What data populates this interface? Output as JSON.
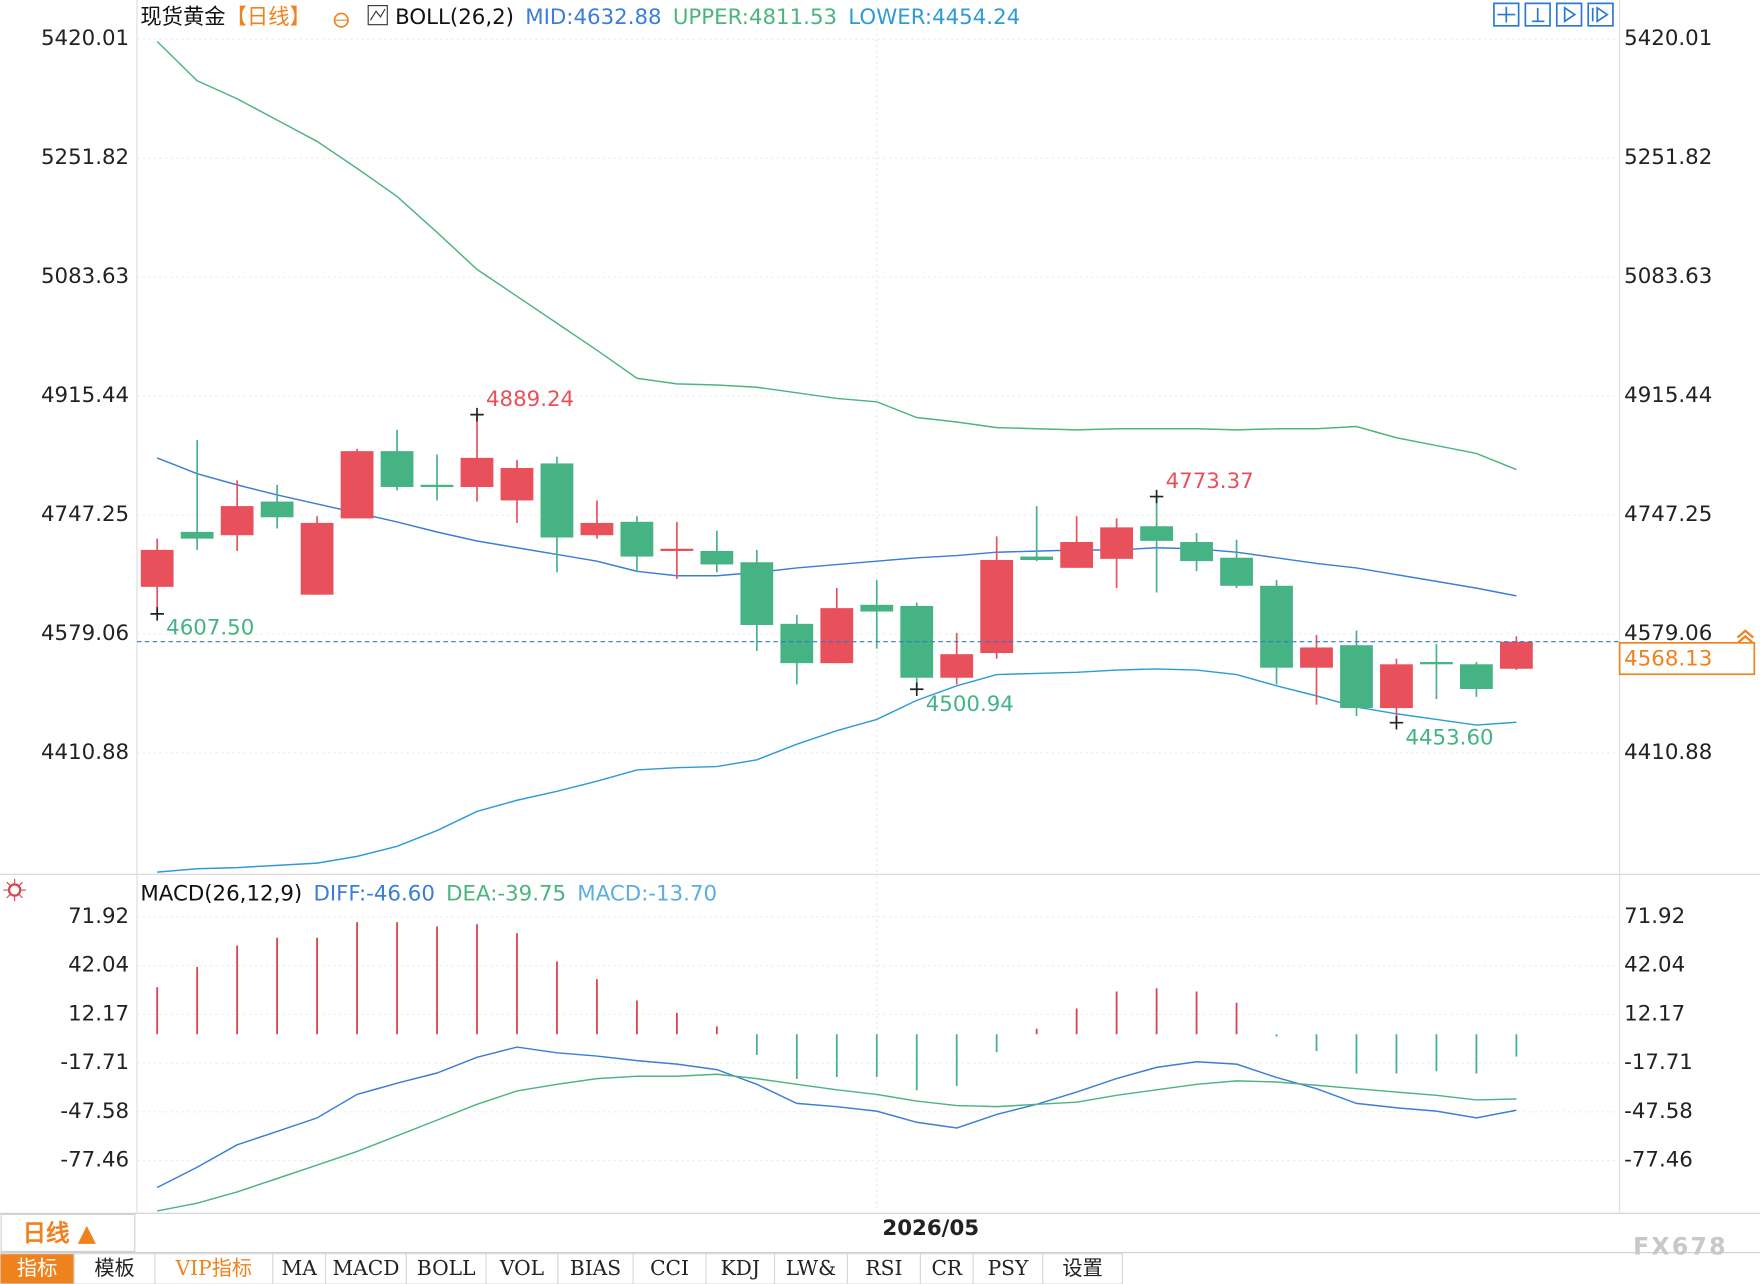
{
  "chart_data": [
    {
      "type": "candlestick",
      "title": "现货黄金",
      "subtitle": "【日线】",
      "indicator": "BOLL(26,2)",
      "categories": [
        null,
        null,
        null,
        null,
        null,
        null,
        null,
        null,
        null,
        null,
        null,
        null,
        null,
        null,
        null,
        null,
        null,
        null,
        "2026/05",
        null,
        null,
        null,
        null,
        null,
        null,
        null,
        null,
        null,
        null,
        null,
        null,
        null,
        null,
        null,
        null
      ],
      "open": [
        4645.7,
        4723.4,
        4718.7,
        4766.3,
        4634.6,
        4742.5,
        4837.6,
        4790.0,
        4786.9,
        4767.9,
        4820.2,
        4718.7,
        4737.7,
        4696.4,
        4696.4,
        4680.5,
        4593.4,
        4537.8,
        4620.3,
        4618.7,
        4517.2,
        4552.1,
        4688.5,
        4672.6,
        4685.3,
        4731.4,
        4709.1,
        4686.9,
        4647.2,
        4531.4,
        4563.2,
        4474.3,
        4539.4,
        4536.2,
        4529.9
      ],
      "high": [
        4713.9,
        4853.5,
        4796.4,
        4790.0,
        4745.6,
        4840.8,
        4867.8,
        4832.9,
        4889.24,
        4825.0,
        4829.7,
        4767.9,
        4745.6,
        4737.7,
        4725.0,
        4698.0,
        4606.1,
        4644.1,
        4655.2,
        4623.5,
        4580.7,
        4717.1,
        4759.9,
        4745.6,
        4742.5,
        4773.37,
        4721.8,
        4712.3,
        4655.2,
        4577.5,
        4583.9,
        4544.1,
        4564.8,
        4539.4,
        4575.9
      ],
      "low": [
        4607.5,
        4698.0,
        4696.4,
        4728.2,
        4634.6,
        4742.5,
        4782.1,
        4767.9,
        4766.3,
        4736.1,
        4666.3,
        4713.9,
        4666.3,
        4656.8,
        4666.3,
        4555.2,
        4507.7,
        4537.8,
        4558.4,
        4500.94,
        4507.7,
        4544.1,
        4682.1,
        4672.6,
        4644.1,
        4637.7,
        4667.9,
        4644.1,
        4507.7,
        4479.1,
        4463.2,
        4453.6,
        4487.0,
        4490.2,
        4528.3
      ],
      "close": [
        4698.0,
        4713.9,
        4759.9,
        4744.1,
        4736.1,
        4837.6,
        4786.9,
        4786.9,
        4828.1,
        4813.8,
        4715.5,
        4736.1,
        4688.5,
        4699.6,
        4677.4,
        4591.8,
        4537.8,
        4615.6,
        4610.8,
        4517.2,
        4550.5,
        4683.7,
        4683.7,
        4709.1,
        4729.8,
        4710.7,
        4682.1,
        4647.2,
        4531.4,
        4560.0,
        4474.3,
        4536.2,
        4536.2,
        4501.3,
        4568.13
      ],
      "high_labels": [
        null,
        null,
        null,
        null,
        null,
        null,
        null,
        null,
        "4889.24",
        null,
        null,
        null,
        null,
        null,
        null,
        null,
        null,
        null,
        null,
        null,
        null,
        null,
        null,
        null,
        null,
        "4773.37",
        null,
        null,
        null,
        null,
        null,
        null,
        null,
        null,
        null
      ],
      "low_labels": [
        "4607.50",
        null,
        null,
        null,
        null,
        null,
        null,
        null,
        null,
        null,
        null,
        null,
        null,
        null,
        null,
        null,
        null,
        null,
        null,
        "4500.94",
        null,
        null,
        null,
        null,
        null,
        null,
        null,
        null,
        null,
        null,
        null,
        "4453.60",
        null,
        null,
        null
      ],
      "up_color": "#e8505b",
      "down_color": "#45b384",
      "series": [
        {
          "name": "MID:4632.88",
          "color": "#3b7dd8",
          "values": [
            4828.0,
            4805.8,
            4789.9,
            4775.6,
            4762.9,
            4750.2,
            4737.5,
            4723.3,
            4710.6,
            4701.0,
            4691.5,
            4682.0,
            4667.7,
            4661.4,
            4661.4,
            4666.1,
            4672.5,
            4677.2,
            4682.0,
            4686.8,
            4689.9,
            4694.7,
            4696.3,
            4697.9,
            4697.9,
            4701.0,
            4699.5,
            4694.7,
            4686.8,
            4678.8,
            4672.5,
            4663.0,
            4653.4,
            4643.9,
            4632.88
          ]
        },
        {
          "name": "UPPER:4811.53",
          "color": "#4cb47f",
          "values": [
            5416.8,
            5361.2,
            5335.8,
            5305.7,
            5275.5,
            5237.4,
            5197.8,
            5147.0,
            5094.6,
            5056.5,
            5018.4,
            4980.4,
            4940.7,
            4932.7,
            4931.2,
            4928.0,
            4920.0,
            4912.1,
            4907.4,
            4885.1,
            4878.8,
            4870.9,
            4869.3,
            4867.7,
            4869.3,
            4869.3,
            4869.3,
            4867.7,
            4869.3,
            4869.3,
            4872.4,
            4856.6,
            4845.5,
            4834.4,
            4811.53
          ]
        },
        {
          "name": "LOWER:4454.24",
          "color": "#2e9bd6",
          "values": [
            4242.4,
            4247.2,
            4248.7,
            4251.9,
            4255.1,
            4264.6,
            4278.9,
            4301.1,
            4328.1,
            4344.0,
            4356.7,
            4370.9,
            4386.8,
            4390.0,
            4391.6,
            4401.1,
            4423.3,
            4442.4,
            4458.2,
            4485.2,
            4505.8,
            4521.7,
            4523.3,
            4524.9,
            4528.1,
            4529.6,
            4528.1,
            4521.7,
            4505.8,
            4491.6,
            4475.7,
            4466.2,
            4458.2,
            4450.3,
            4454.24
          ]
        }
      ],
      "last_price": 4568.13,
      "last_price_color": "#f0821e",
      "ylim": [
        4240.8,
        5475.5
      ],
      "yticks": [
        5420.01,
        5251.82,
        5083.63,
        4915.44,
        4747.25,
        4579.06,
        4410.88
      ],
      "grid": true
    },
    {
      "type": "macd",
      "title": "MACD(26,12,9)",
      "series": [
        {
          "name": "DIFF:-46.60",
          "color": "#3b7dd8",
          "type": "line",
          "values": [
            -94.0,
            -81.6,
            -67.8,
            -59.6,
            -51.3,
            -36.9,
            -30.0,
            -23.8,
            -14.1,
            -7.9,
            -11.4,
            -13.4,
            -16.2,
            -18.3,
            -21.7,
            -30.7,
            -42.4,
            -44.4,
            -47.2,
            -54.0,
            -57.5,
            -49.2,
            -43.0,
            -35.5,
            -27.2,
            -20.3,
            -16.9,
            -18.3,
            -26.5,
            -33.4,
            -42.4,
            -45.1,
            -47.2,
            -51.3,
            -46.6
          ]
        },
        {
          "name": "DEA:-39.75",
          "color": "#4cb47f",
          "type": "line",
          "values": [
            -108.4,
            -103.6,
            -96.7,
            -88.5,
            -80.2,
            -71.9,
            -62.3,
            -52.7,
            -43.0,
            -34.8,
            -30.7,
            -27.2,
            -25.8,
            -25.8,
            -24.5,
            -27.2,
            -30.7,
            -34.1,
            -36.9,
            -41.0,
            -43.7,
            -44.4,
            -43.0,
            -41.7,
            -37.5,
            -34.1,
            -30.7,
            -28.6,
            -29.3,
            -31.3,
            -33.4,
            -35.5,
            -37.5,
            -40.3,
            -39.75
          ]
        },
        {
          "name": "MACD:-13.70",
          "color": "#5aaee0",
          "type": "bar",
          "up_color": "#d9434e",
          "down_color": "#45b384",
          "values": [
            28.9,
            41.3,
            54.4,
            59.2,
            59.2,
            68.8,
            68.8,
            66.1,
            67.5,
            62.0,
            44.7,
            33.7,
            20.7,
            13.1,
            4.8,
            -12.7,
            -27.5,
            -26.2,
            -26.2,
            -34.4,
            -31.7,
            -11.0,
            3.4,
            15.8,
            26.2,
            28.2,
            26.2,
            19.3,
            -1.4,
            -10.3,
            -24.1,
            -24.1,
            -22.7,
            -24.1,
            -13.7
          ]
        }
      ],
      "ylim": [
        -110.5,
        96
      ],
      "yticks": [
        71.92,
        42.04,
        12.17,
        -17.71,
        -47.58,
        -77.46
      ],
      "grid": true
    }
  ],
  "period_tab": "日线 ▲",
  "tabs": [
    "指标",
    "模板",
    "VIP指标",
    "MA",
    "MACD",
    "BOLL",
    "VOL",
    "BIAS",
    "CCI",
    "KDJ",
    "LW&",
    "RSI",
    "CR",
    "PSY",
    "设置"
  ],
  "watermark": "FX678"
}
